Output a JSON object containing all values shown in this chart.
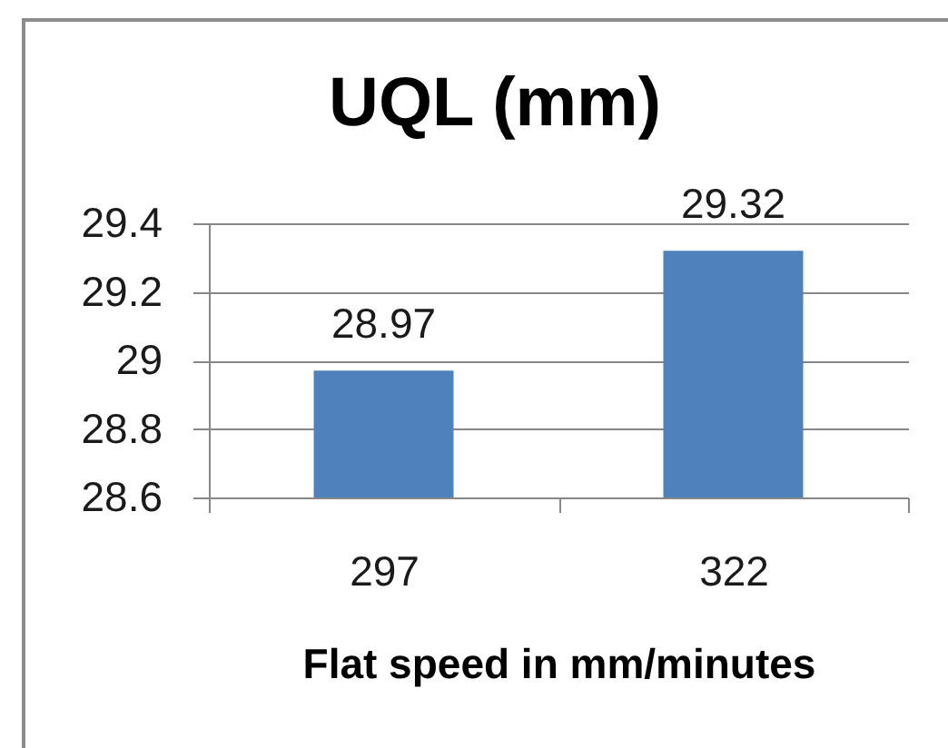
{
  "chart_data": {
    "type": "bar",
    "title": "UQL (mm)",
    "xlabel": "Flat speed in mm/minutes",
    "categories": [
      "297",
      "322"
    ],
    "values": [
      28.97,
      29.32
    ],
    "color": "#4f81bd",
    "ylim": [
      28.6,
      29.4
    ],
    "yticks": [
      28.6,
      28.8,
      29,
      29.2,
      29.4
    ],
    "grid": "y",
    "data_labels": true
  }
}
